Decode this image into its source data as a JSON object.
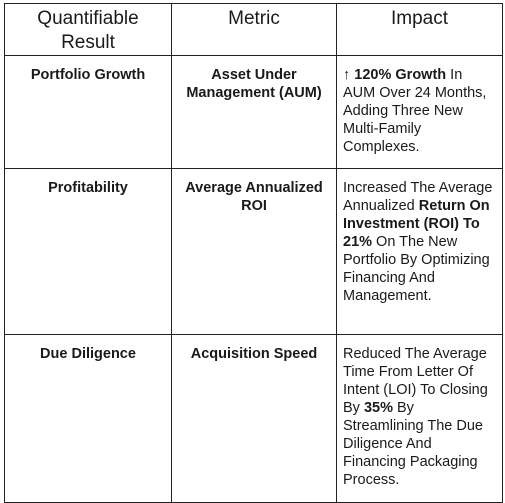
{
  "headers": {
    "result": "Quantifiable Result",
    "metric": "Metric",
    "impact": "Impact"
  },
  "rows": [
    {
      "result": "Portfolio Growth",
      "metric": "Asset Under Management (AUM)",
      "impact": {
        "lead": "↑ 120% Growth",
        "tail": " In AUM Over 24 Months, Adding Three New Multi-Family Complexes."
      }
    },
    {
      "result": "Profitability",
      "metric": "Average Annualized ROI",
      "impact": {
        "pre": "Increased The Average Annualized ",
        "bold": "Return On Investment (ROI) To 21%",
        "post": " On The New Portfolio By Optimizing Financing And Management."
      }
    },
    {
      "result": "Due Diligence",
      "metric": "Acquisition Speed",
      "impact": {
        "pre": "Reduced The Average Time From Letter Of Intent (LOI) To Closing By ",
        "bold": "35%",
        "post": " By Streamlining The Due Diligence And Financing Packaging Process."
      }
    }
  ]
}
